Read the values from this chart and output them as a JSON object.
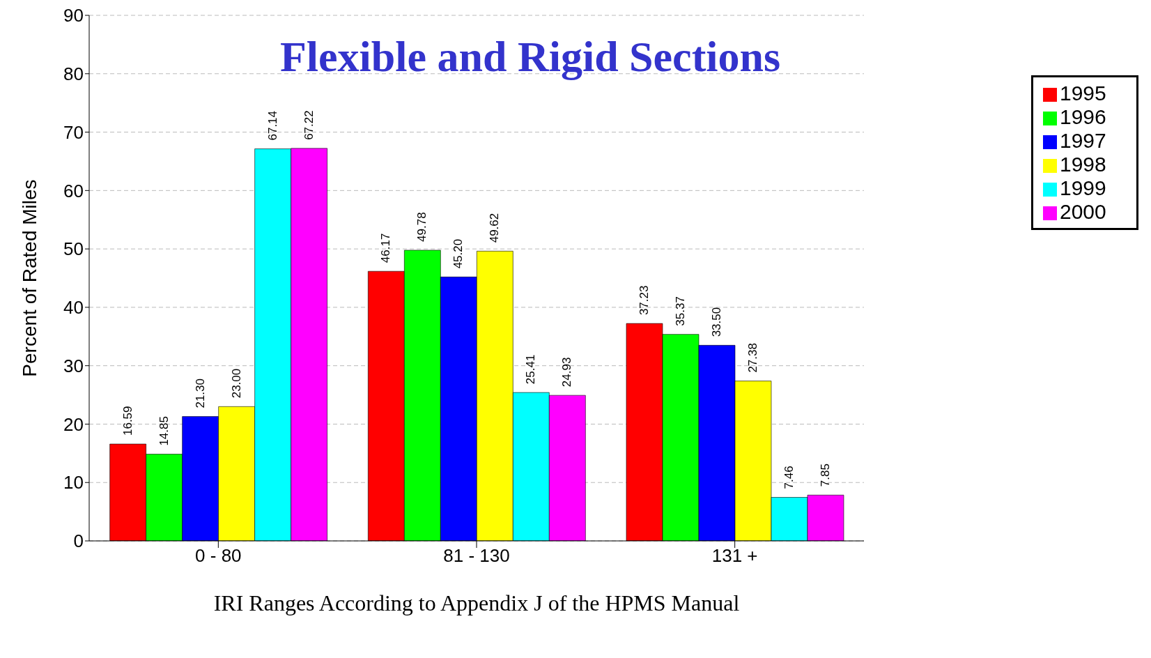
{
  "chart_data": {
    "type": "bar",
    "title": "Flexible and Rigid Sections",
    "xlabel": "IRI Ranges According to Appendix J of the HPMS Manual",
    "ylabel": "Percent of Rated Miles",
    "categories": [
      "0 - 80",
      "81 - 130",
      "131 +"
    ],
    "series": [
      {
        "name": "1995",
        "color": "#ff0000",
        "values": [
          16.59,
          46.17,
          37.23
        ],
        "value_labels": [
          "16.59",
          "46.17",
          "37.23"
        ]
      },
      {
        "name": "1996",
        "color": "#00ff00",
        "values": [
          14.85,
          49.78,
          35.37
        ],
        "value_labels": [
          "14.85",
          "49.78",
          "35.37"
        ]
      },
      {
        "name": "1997",
        "color": "#0000ff",
        "values": [
          21.3,
          45.2,
          33.5
        ],
        "value_labels": [
          "21.30",
          "45.20",
          "33.50"
        ]
      },
      {
        "name": "1998",
        "color": "#ffff00",
        "values": [
          23.0,
          49.62,
          27.38
        ],
        "value_labels": [
          "23.00",
          "49.62",
          "27.38"
        ]
      },
      {
        "name": "1999",
        "color": "#00ffff",
        "values": [
          67.14,
          25.41,
          7.46
        ],
        "value_labels": [
          "67.14",
          "25.41",
          "7.46"
        ]
      },
      {
        "name": "2000",
        "color": "#ff00ff",
        "values": [
          67.22,
          24.93,
          7.85
        ],
        "value_labels": [
          "67.22",
          "24.93",
          "7.85"
        ]
      }
    ],
    "ylim": [
      0,
      90
    ],
    "yticks": [
      0,
      10,
      20,
      30,
      40,
      50,
      60,
      70,
      80,
      90
    ],
    "grid": "y",
    "legend": "top right"
  }
}
